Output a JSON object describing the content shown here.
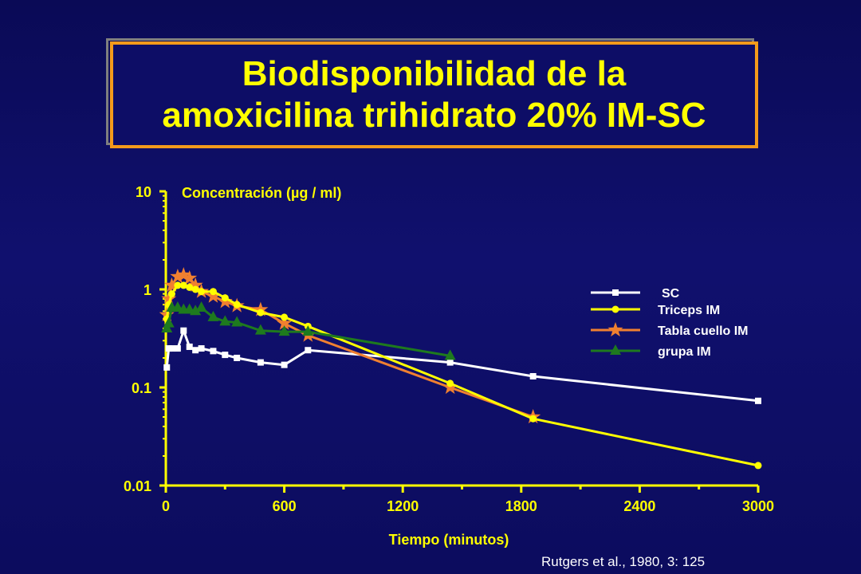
{
  "slide": {
    "title_line1": "Biodisponibilidad de la",
    "title_line2": "amoxicilina trihidrato 20% IM-SC",
    "source": "Rutgers et al., 1980, 3: 125"
  },
  "chart_data": {
    "type": "line",
    "title": "",
    "ylabel": "Concentración (µg / ml)",
    "xlabel": "Tiempo (minutos)",
    "yscale": "log",
    "ylim": [
      0.01,
      10
    ],
    "xlim": [
      0,
      3000
    ],
    "x_ticks": [
      "0",
      "600",
      "1200",
      "1800",
      "2400",
      "3000"
    ],
    "y_ticks": [
      "10",
      "1",
      "0.1",
      "0.01"
    ],
    "legend_position": "right",
    "grid": false,
    "colors": {
      "axis": "#ffff00",
      "sc": "#ffffff",
      "triceps": "#ffff00",
      "tabla": "#f08030",
      "grupa": "#1e7a1e"
    },
    "series": [
      {
        "name": "SC",
        "marker": "square",
        "color": "#ffffff",
        "x": [
          5,
          15,
          30,
          60,
          90,
          120,
          150,
          180,
          240,
          300,
          360,
          480,
          600,
          720,
          1440,
          1860,
          3000
        ],
        "y": [
          0.16,
          0.25,
          0.25,
          0.25,
          0.38,
          0.26,
          0.24,
          0.25,
          0.235,
          0.215,
          0.2,
          0.18,
          0.17,
          0.24,
          0.18,
          0.13,
          0.073
        ]
      },
      {
        "name": "Triceps IM",
        "marker": "circle",
        "color": "#ffff00",
        "x": [
          5,
          15,
          30,
          60,
          90,
          120,
          150,
          180,
          240,
          300,
          360,
          480,
          600,
          720,
          1440,
          1860,
          3000
        ],
        "y": [
          0.5,
          0.7,
          0.9,
          1.1,
          1.1,
          1.05,
          1.0,
          0.95,
          0.95,
          0.82,
          0.7,
          0.58,
          0.52,
          0.42,
          0.11,
          0.048,
          0.016
        ]
      },
      {
        "name": "Tabla cuello IM",
        "marker": "star",
        "color": "#f08030",
        "x": [
          5,
          15,
          30,
          60,
          90,
          120,
          150,
          180,
          240,
          300,
          360,
          480,
          600,
          720,
          1440,
          1860
        ],
        "y": [
          0.55,
          0.8,
          1.1,
          1.35,
          1.4,
          1.3,
          1.1,
          0.95,
          0.85,
          0.75,
          0.68,
          0.62,
          0.45,
          0.34,
          0.1,
          0.05
        ]
      },
      {
        "name": "grupa IM",
        "marker": "triangle",
        "color": "#1e7a1e",
        "x": [
          5,
          15,
          30,
          60,
          90,
          120,
          150,
          180,
          240,
          300,
          360,
          480,
          600,
          720,
          1440
        ],
        "y": [
          0.4,
          0.45,
          0.65,
          0.65,
          0.62,
          0.62,
          0.6,
          0.65,
          0.52,
          0.47,
          0.46,
          0.38,
          0.37,
          0.37,
          0.21
        ]
      }
    ]
  }
}
